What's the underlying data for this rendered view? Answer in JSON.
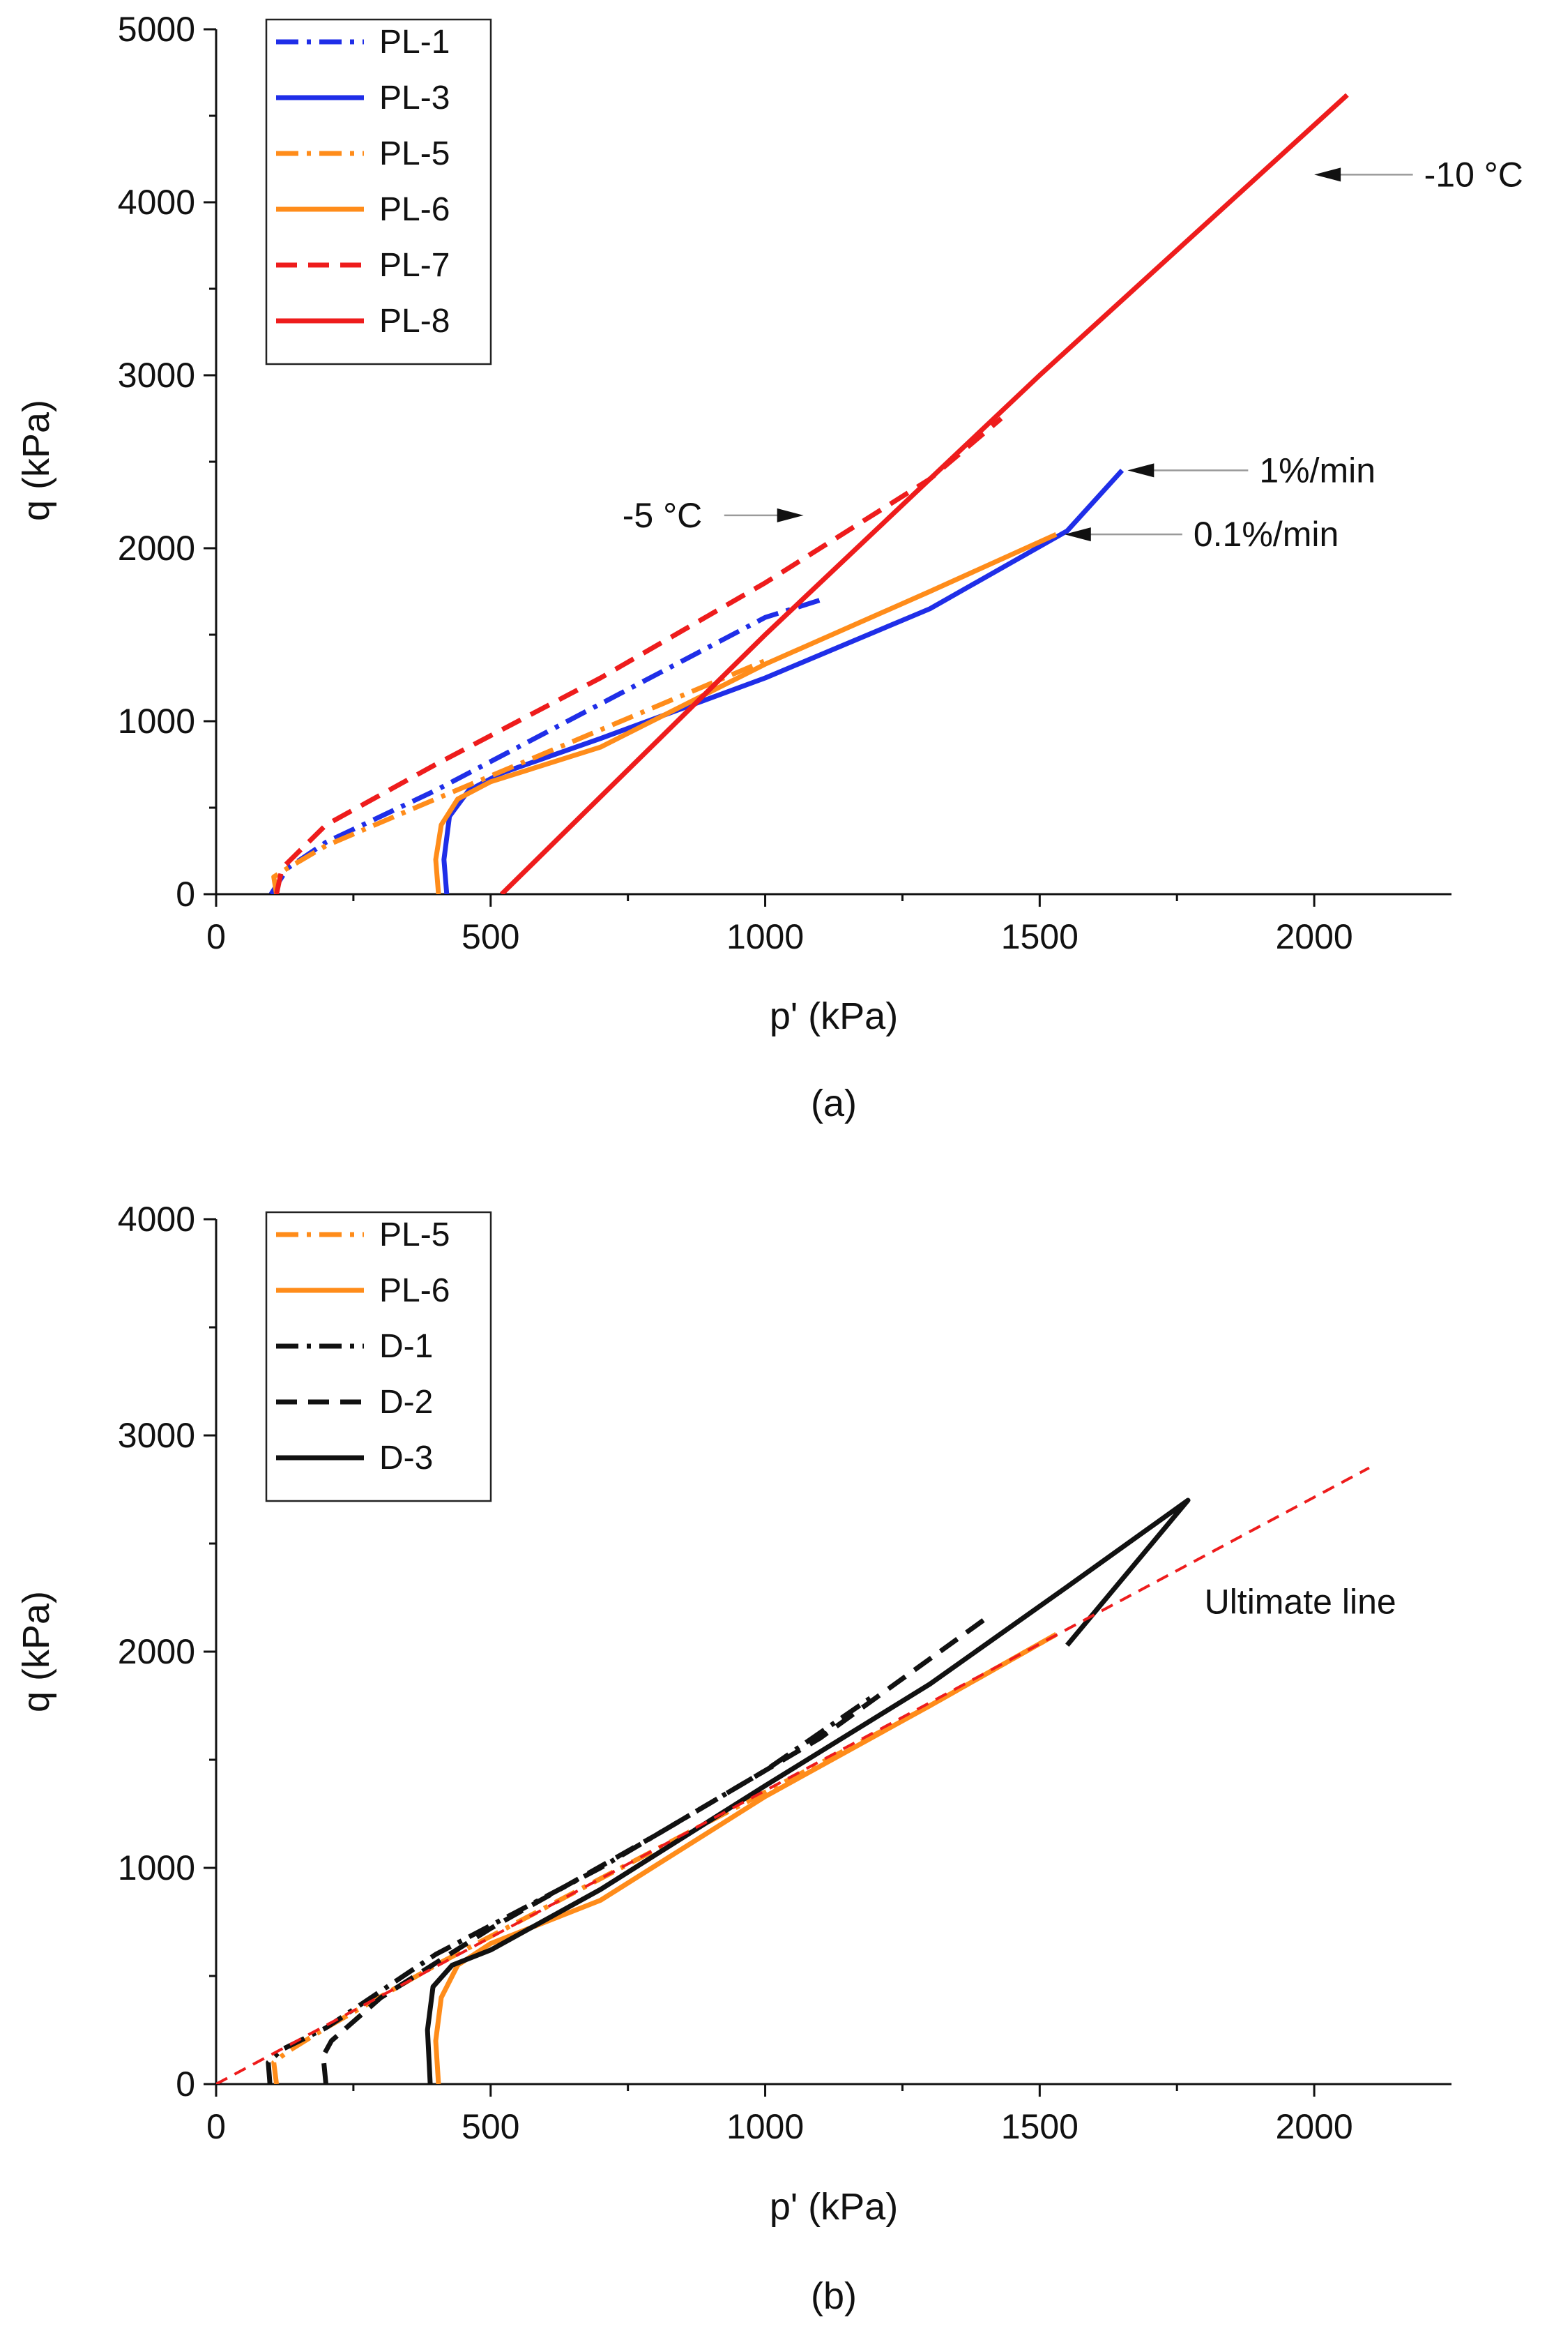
{
  "figure": {
    "panels": [
      "(a)",
      "(b)"
    ]
  },
  "chart_data": [
    {
      "type": "line",
      "panel_label": "(a)",
      "title": "",
      "xlabel": "p' (kPa)",
      "ylabel": "q (kPa)",
      "xlim": [
        0,
        2250
      ],
      "ylim": [
        0,
        5000
      ],
      "xticks": [
        0,
        500,
        1000,
        1500,
        2000
      ],
      "yticks": [
        0,
        1000,
        2000,
        3000,
        4000,
        5000
      ],
      "xtick_labels": [
        "0",
        "500",
        "1000",
        "1500",
        "2000"
      ],
      "ytick_labels": [
        "0",
        "1000",
        "2000",
        "3000",
        "4000",
        "5000"
      ],
      "grid": false,
      "legend_position": "top-left",
      "series": [
        {
          "name": "PL-1",
          "color": "#1f2ee8",
          "style": "dashdot",
          "x": [
            100,
            130,
            200,
            400,
            700,
            1000,
            1100
          ],
          "y": [
            0,
            150,
            300,
            600,
            1100,
            1600,
            1700
          ]
        },
        {
          "name": "PL-3",
          "color": "#1f2ee8",
          "style": "solid",
          "x": [
            420,
            415,
            425,
            460,
            520,
            700,
            1000,
            1300,
            1550,
            1650
          ],
          "y": [
            0,
            200,
            450,
            600,
            700,
            900,
            1250,
            1650,
            2100,
            2450
          ]
        },
        {
          "name": "PL-5",
          "color": "#ff8c1a",
          "style": "dashdot",
          "x": [
            110,
            105,
            130,
            200,
            400,
            700,
            1000
          ],
          "y": [
            0,
            100,
            150,
            280,
            550,
            950,
            1350
          ]
        },
        {
          "name": "PL-6",
          "color": "#ff8c1a",
          "style": "solid",
          "x": [
            405,
            400,
            410,
            440,
            500,
            700,
            1000,
            1300,
            1530
          ],
          "y": [
            0,
            200,
            400,
            550,
            650,
            850,
            1330,
            1750,
            2080
          ]
        },
        {
          "name": "PL-7",
          "color": "#ee1c1c",
          "style": "dashed",
          "x": [
            110,
            120,
            200,
            400,
            700,
            1000,
            1300,
            1430
          ],
          "y": [
            0,
            150,
            400,
            750,
            1250,
            1800,
            2400,
            2750
          ]
        },
        {
          "name": "PL-8",
          "color": "#ee1c1c",
          "style": "solid",
          "x": [
            520,
            1000,
            1500,
            2060
          ],
          "y": [
            0,
            1500,
            3000,
            4620
          ]
        }
      ],
      "annotations": [
        {
          "text": "-10 °C",
          "target": {
            "x": 2000,
            "y": 4160
          },
          "text_at": {
            "x": 2200,
            "y": 4160
          }
        },
        {
          "text": "1%/min",
          "target": {
            "x": 1660,
            "y": 2450
          },
          "text_at": {
            "x": 1900,
            "y": 2450
          }
        },
        {
          "text": "0.1%/min",
          "target": {
            "x": 1545,
            "y": 2080
          },
          "text_at": {
            "x": 1780,
            "y": 2080
          }
        },
        {
          "text": "-5 °C",
          "target": {
            "x": 1070,
            "y": 2190
          },
          "text_at": {
            "x": 740,
            "y": 2190
          }
        }
      ]
    },
    {
      "type": "line",
      "panel_label": "(b)",
      "title": "",
      "xlabel": "p' (kPa)",
      "ylabel": "q (kPa)",
      "xlim": [
        0,
        2250
      ],
      "ylim": [
        0,
        4000
      ],
      "xticks": [
        0,
        500,
        1000,
        1500,
        2000
      ],
      "yticks": [
        0,
        1000,
        2000,
        3000,
        4000
      ],
      "xtick_labels": [
        "0",
        "500",
        "1000",
        "1500",
        "2000"
      ],
      "ytick_labels": [
        "0",
        "1000",
        "2000",
        "3000",
        "4000"
      ],
      "grid": false,
      "legend_position": "top-left",
      "series": [
        {
          "name": "PL-5",
          "color": "#ff8c1a",
          "style": "dashdot",
          "x": [
            110,
            105,
            130,
            200,
            400,
            700,
            1000,
            1300,
            1530
          ],
          "y": [
            0,
            100,
            150,
            260,
            550,
            950,
            1350,
            1750,
            2080
          ]
        },
        {
          "name": "PL-6",
          "color": "#ff8c1a",
          "style": "solid",
          "x": [
            405,
            400,
            410,
            440,
            500,
            700,
            1000,
            1300,
            1530
          ],
          "y": [
            0,
            200,
            400,
            550,
            650,
            850,
            1330,
            1750,
            2080
          ]
        },
        {
          "name": "D-1",
          "color": "#111111",
          "style": "dashdot",
          "x": [
            98,
            95,
            120,
            200,
            400,
            700,
            1000,
            1200
          ],
          "y": [
            0,
            100,
            160,
            260,
            600,
            1000,
            1450,
            1800
          ]
        },
        {
          "name": "D-2",
          "color": "#111111",
          "style": "dashed",
          "x": [
            200,
            195,
            210,
            300,
            500,
            800,
            1100,
            1400
          ],
          "y": [
            0,
            130,
            200,
            400,
            720,
            1150,
            1600,
            2150
          ]
        },
        {
          "name": "D-3",
          "color": "#111111",
          "style": "solid",
          "x": [
            390,
            385,
            395,
            430,
            500,
            700,
            1000,
            1300,
            1550,
            1770,
            1550
          ],
          "y": [
            0,
            250,
            450,
            550,
            620,
            900,
            1380,
            1850,
            2300,
            2700,
            2030
          ]
        },
        {
          "name": "Ultimate line",
          "color": "#ee1c1c",
          "style": "fineDash",
          "legend": false,
          "x": [
            0,
            2100
          ],
          "y": [
            0,
            2850
          ]
        }
      ],
      "annotations": [
        {
          "text": "Ultimate line",
          "text_at": {
            "x": 1800,
            "y": 2230
          }
        }
      ]
    }
  ]
}
